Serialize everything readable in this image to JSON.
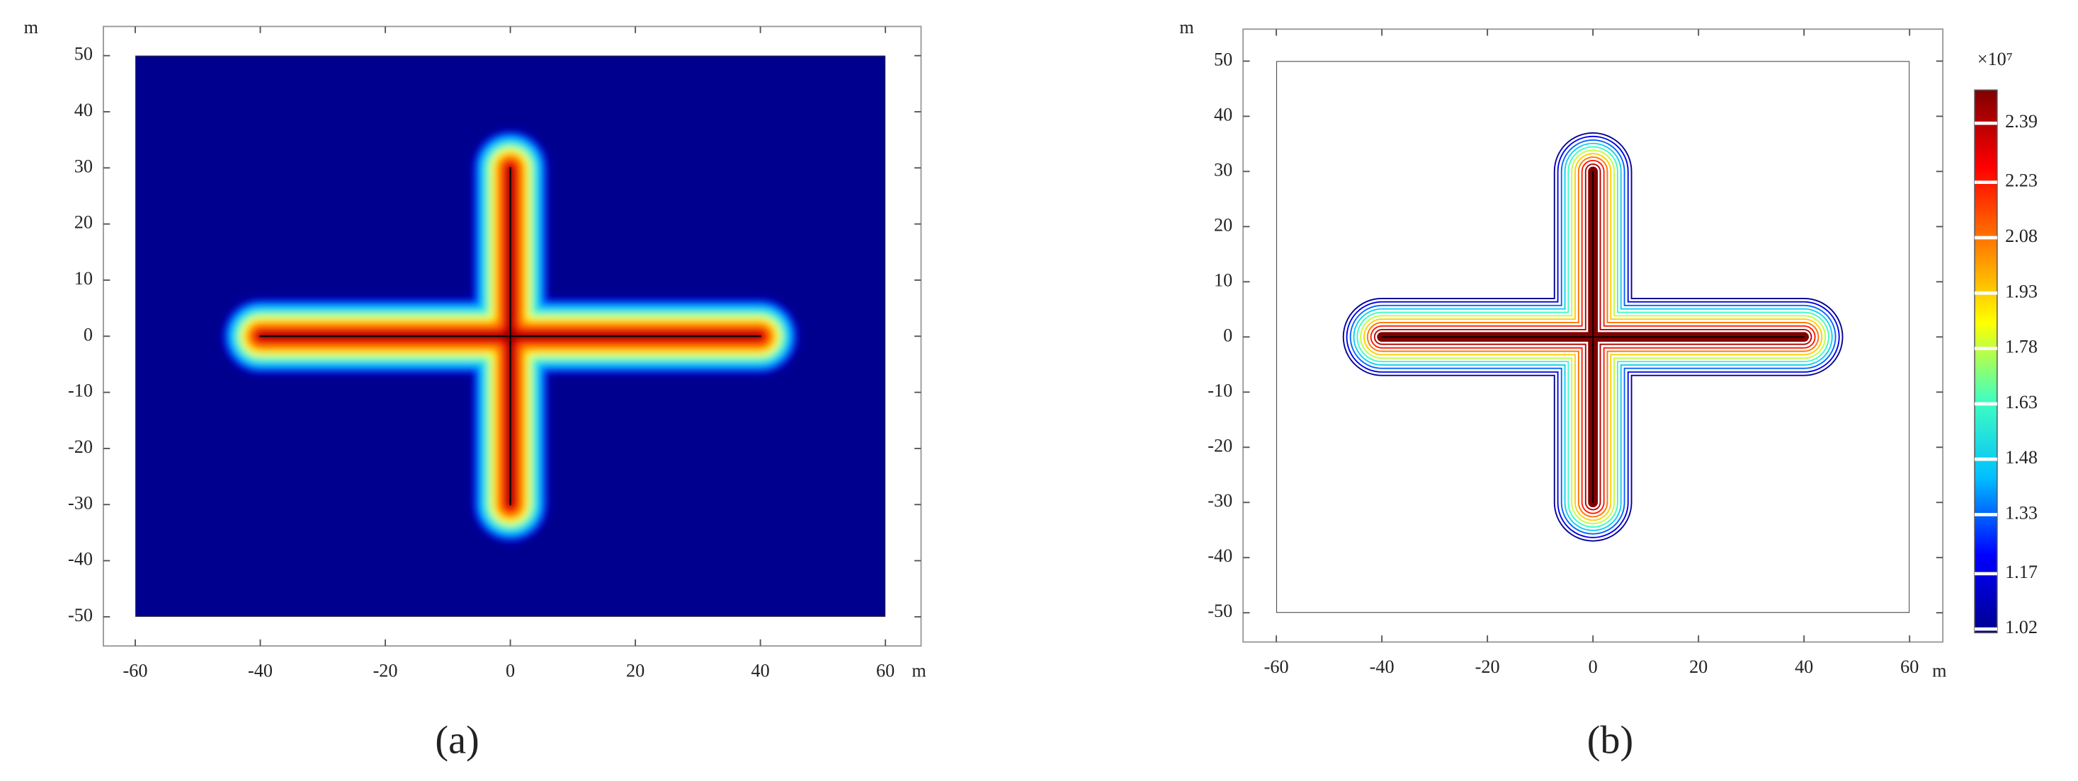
{
  "chart_data": [
    {
      "type": "heatmap",
      "caption": "(a)",
      "x_label": "m",
      "y_label": "m",
      "xlim": [
        -65.1,
        65.7
      ],
      "ylim": [
        -55.2,
        55.2
      ],
      "xticks": [
        -60,
        -40,
        -20,
        0,
        20,
        40,
        60
      ],
      "yticks": [
        -50,
        -40,
        -30,
        -20,
        -10,
        0,
        10,
        20,
        30,
        40,
        50
      ],
      "domain": {
        "x": [
          -60,
          60
        ],
        "y": [
          -50,
          50
        ]
      },
      "fractures": [
        {
          "x": [
            -40,
            40
          ],
          "y": [
            0,
            0
          ]
        },
        {
          "x": [
            0,
            0
          ],
          "y": [
            -30,
            30
          ]
        }
      ],
      "background": "#00008f",
      "colormap": [
        "#00008f",
        "#0000ff",
        "#00bfff",
        "#40ffbf",
        "#ffff00",
        "#ff8000",
        "#ff0000",
        "#800000"
      ]
    },
    {
      "type": "contour",
      "caption": "(b)",
      "x_label": "m",
      "y_label": "m",
      "xlim": [
        -66.3,
        66.3
      ],
      "ylim": [
        -55.3,
        55.8
      ],
      "xticks": [
        -60,
        -40,
        -20,
        0,
        20,
        40,
        60
      ],
      "yticks": [
        -50,
        -40,
        -30,
        -20,
        -10,
        0,
        10,
        20,
        30,
        40,
        50
      ],
      "domain": {
        "x": [
          -60,
          60
        ],
        "y": [
          -50,
          50
        ]
      },
      "fractures": [
        {
          "x": [
            -40,
            40
          ],
          "y": [
            0,
            0
          ]
        },
        {
          "x": [
            0,
            0
          ],
          "y": [
            -30,
            30
          ]
        }
      ],
      "colormap": [
        "#00008f",
        "#0000ff",
        "#00bfff",
        "#40ffbf",
        "#ffff00",
        "#ff8000",
        "#ff0000",
        "#800000"
      ],
      "colorbar": {
        "label": "×10⁷",
        "lim": [
          1.01,
          2.48
        ],
        "ticks": [
          1.02,
          1.17,
          1.33,
          1.48,
          1.63,
          1.78,
          1.93,
          2.08,
          2.23,
          2.39
        ]
      }
    }
  ]
}
